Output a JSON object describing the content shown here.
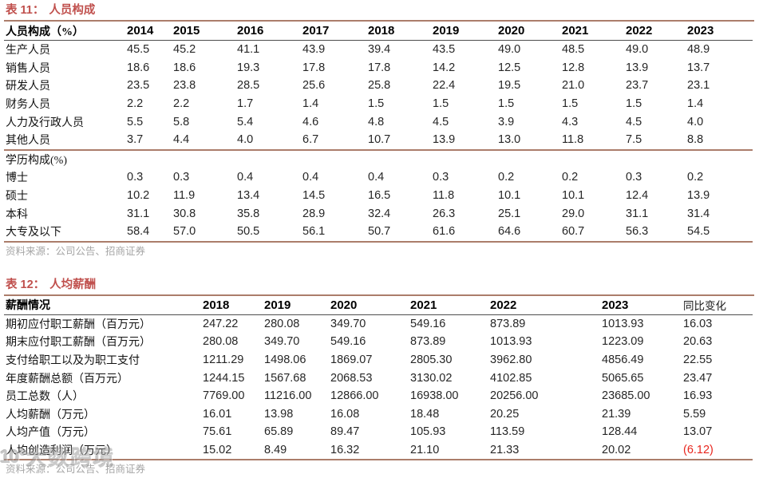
{
  "colors": {
    "title_red": "#c0504d",
    "rule_brown": "#ab7d6b",
    "header_underline": "#4d4d4d",
    "body_text": "#262626",
    "source_gray": "#a6a6a6",
    "negative_red": "#e8251d"
  },
  "table11": {
    "tag": "表 11：",
    "title": "人员构成",
    "columns": [
      "人员构成（%）",
      "2014",
      "2015",
      "2016",
      "2017",
      "2018",
      "2019",
      "2020",
      "2021",
      "2022",
      "2023"
    ],
    "rows": [
      {
        "label": "生产人员",
        "values": [
          "45.5",
          "45.2",
          "41.1",
          "43.9",
          "39.4",
          "43.5",
          "49.0",
          "48.5",
          "49.0",
          "48.9"
        ]
      },
      {
        "label": "销售人员",
        "values": [
          "18.6",
          "18.6",
          "19.3",
          "17.8",
          "17.8",
          "14.2",
          "12.5",
          "12.8",
          "13.9",
          "13.7"
        ]
      },
      {
        "label": "研发人员",
        "values": [
          "23.5",
          "23.8",
          "28.5",
          "25.6",
          "25.8",
          "22.4",
          "19.5",
          "21.0",
          "23.7",
          "23.1"
        ]
      },
      {
        "label": "财务人员",
        "values": [
          "2.2",
          "2.2",
          "1.7",
          "1.4",
          "1.5",
          "1.5",
          "1.5",
          "1.5",
          "1.5",
          "1.4"
        ]
      },
      {
        "label": "人力及行政人员",
        "values": [
          "5.5",
          "5.8",
          "5.4",
          "4.6",
          "4.8",
          "4.5",
          "3.9",
          "4.3",
          "4.5",
          "4.0"
        ]
      },
      {
        "label": "其他人员",
        "values": [
          "3.7",
          "4.4",
          "4.0",
          "6.7",
          "10.7",
          "13.9",
          "13.0",
          "11.8",
          "7.5",
          "8.8"
        ]
      }
    ],
    "section2_label": "学历构成(%)",
    "section2_rows": [
      {
        "label": "博士",
        "values": [
          "0.3",
          "0.3",
          "0.4",
          "0.4",
          "0.4",
          "0.3",
          "0.2",
          "0.2",
          "0.3",
          "0.2"
        ]
      },
      {
        "label": "硕士",
        "values": [
          "10.2",
          "11.9",
          "13.4",
          "14.5",
          "16.5",
          "11.8",
          "10.1",
          "10.1",
          "12.4",
          "13.9"
        ]
      },
      {
        "label": "本科",
        "values": [
          "31.1",
          "30.8",
          "35.8",
          "28.9",
          "32.4",
          "26.3",
          "25.1",
          "29.0",
          "31.1",
          "31.4"
        ]
      },
      {
        "label": "大专及以下",
        "values": [
          "58.4",
          "57.0",
          "50.5",
          "56.1",
          "50.7",
          "61.6",
          "64.6",
          "60.7",
          "56.3",
          "54.5"
        ]
      }
    ],
    "source": "资料来源：公司公告、招商证券"
  },
  "table12": {
    "tag": "表 12：",
    "title": "人均薪酬",
    "columns": [
      "薪酬情况",
      "2018",
      "2019",
      "2020",
      "2021",
      "2022",
      "2023",
      "同比变化"
    ],
    "rows": [
      {
        "label": "期初应付职工薪酬（百万元）",
        "values": [
          "247.22",
          "280.08",
          "349.70",
          "549.16",
          "873.89",
          "1013.93",
          "16.03"
        ]
      },
      {
        "label": "期末应付职工薪酬（百万元）",
        "values": [
          "280.08",
          "349.70",
          "549.16",
          "873.89",
          "1013.93",
          "1223.09",
          "20.63"
        ]
      },
      {
        "label": "支付给职工以及为职工支付",
        "values": [
          "1211.29",
          "1498.06",
          "1869.07",
          "2805.30",
          "3962.80",
          "4856.49",
          "22.55"
        ]
      },
      {
        "label": "年度薪酬总额（百万元）",
        "values": [
          "1244.15",
          "1567.68",
          "2068.53",
          "3130.02",
          "4102.85",
          "5065.65",
          "23.47"
        ]
      },
      {
        "label": "员工总数（人）",
        "values": [
          "7769.00",
          "11216.00",
          "12866.00",
          "16938.00",
          "20256.00",
          "23685.00",
          "16.93"
        ]
      },
      {
        "label": "人均薪酬（万元）",
        "values": [
          "16.01",
          "13.98",
          "16.08",
          "18.48",
          "20.25",
          "21.39",
          "5.59"
        ]
      },
      {
        "label": "人均产值（万元）",
        "values": [
          "75.61",
          "65.89",
          "89.47",
          "105.93",
          "113.59",
          "128.44",
          "13.07"
        ]
      },
      {
        "label": "人均创造利润（万元）",
        "values": [
          "15.02",
          "8.49",
          "16.32",
          "21.10",
          "21.33",
          "20.02",
          "(6.12)"
        ],
        "negative_last": true
      }
    ],
    "source": "资料来源：公司公告、招商证券"
  },
  "watermark": {
    "logo": "10°",
    "text": "大数跨境"
  }
}
